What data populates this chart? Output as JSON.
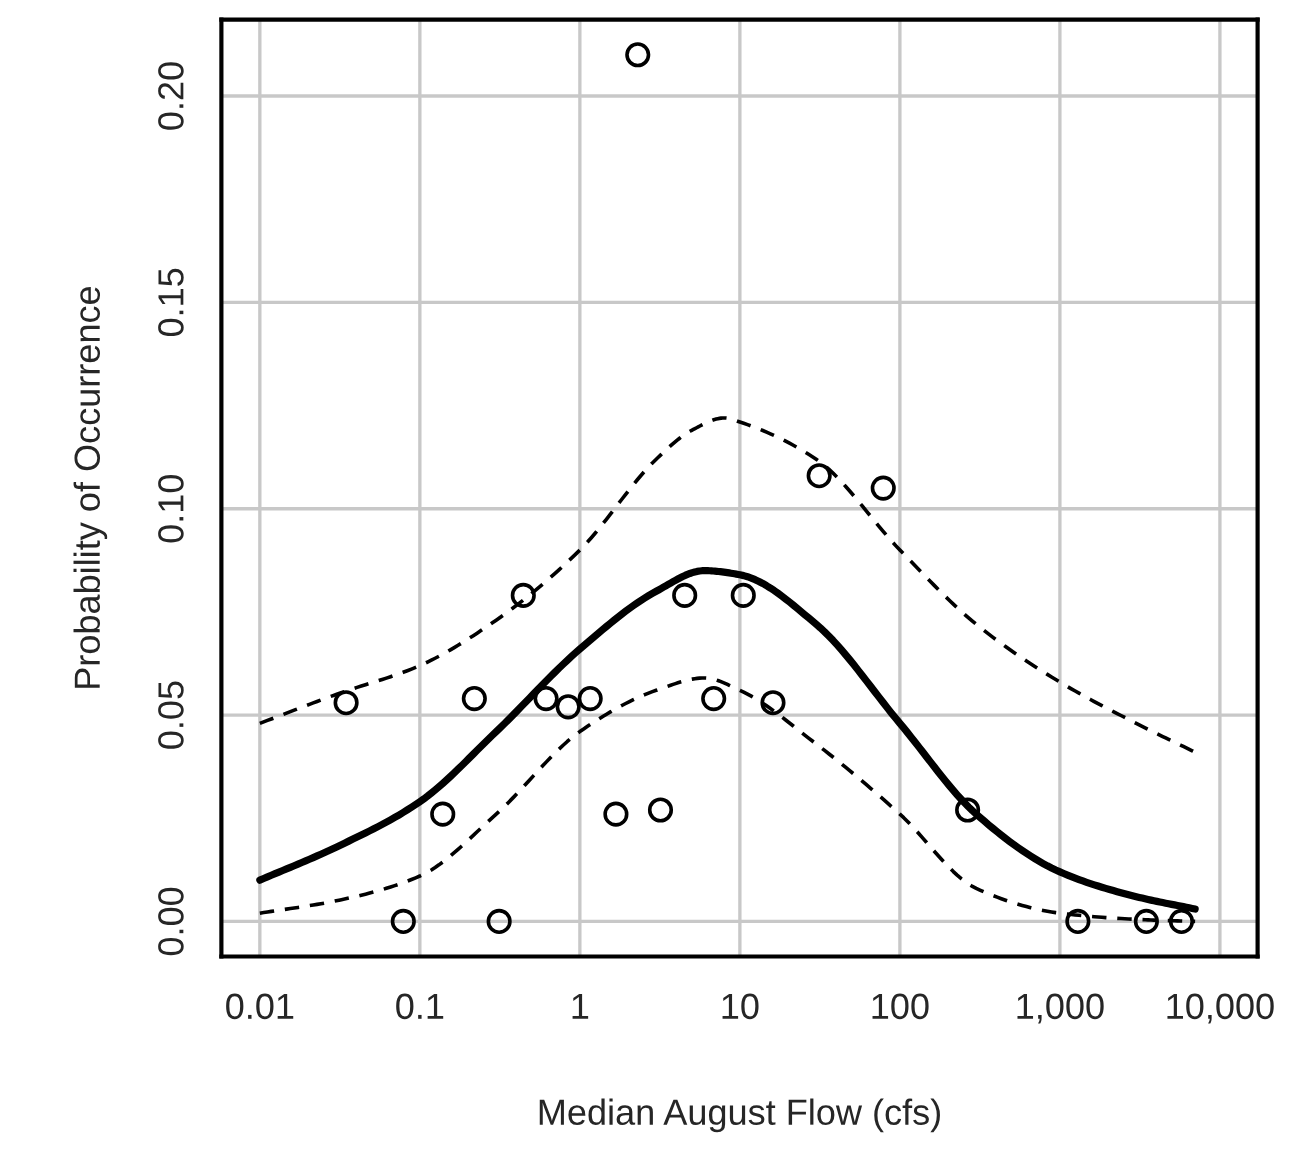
{
  "chart_data": {
    "type": "scatter",
    "xlabel": "Median August Flow (cfs)",
    "ylabel": "Probability of Occurrence",
    "log": "x",
    "xlim": [
      0.00575,
      17200
    ],
    "xticks": [
      {
        "value": 0.01,
        "label": "0.01"
      },
      {
        "value": 0.1,
        "label": "0.1"
      },
      {
        "value": 1,
        "label": "1"
      },
      {
        "value": 10,
        "label": "10"
      },
      {
        "value": 100,
        "label": "100"
      },
      {
        "value": 1000,
        "label": "1,000"
      },
      {
        "value": 10000,
        "label": "10,000"
      }
    ],
    "ylim": [
      -0.0085,
      0.2185
    ],
    "yticks": [
      {
        "value": 0,
        "label": "0.00"
      },
      {
        "value": 0.05,
        "label": "0.05"
      },
      {
        "value": 0.1,
        "label": "0.10"
      },
      {
        "value": 0.15,
        "label": "0.15"
      },
      {
        "value": 0.2,
        "label": "0.20"
      }
    ],
    "grid": true,
    "legend": false,
    "series": [
      {
        "marker": "circle",
        "color": "#000000",
        "x": [
          2.3,
          0.0346,
          0.443,
          0.219,
          0.615,
          0.845,
          1.16,
          4.52,
          10.5,
          6.86,
          0.139,
          1.68,
          3.19,
          0.0788,
          0.313,
          31.3,
          78.7,
          16.1,
          265,
          1295,
          3470,
          5750
        ],
        "values": [
          0.21,
          0.053,
          0.079,
          0.054,
          0.054,
          0.052,
          0.054,
          0.079,
          0.079,
          0.054,
          0.026,
          0.026,
          0.027,
          0,
          0,
          0.108,
          0.105,
          0.053,
          0.027,
          0,
          0,
          0
        ]
      },
      {
        "type": "line",
        "line_style": "solid",
        "color": "#000000",
        "x": [
          0.01,
          0.03,
          0.1,
          0.3,
          1,
          3,
          6,
          10,
          30,
          100,
          300,
          1000,
          3000,
          7000
        ],
        "values": [
          0.01,
          0.018,
          0.029,
          0.046,
          0.066,
          0.08,
          0.085,
          0.084,
          0.072,
          0.048,
          0.026,
          0.012,
          0.006,
          0.003
        ]
      },
      {
        "type": "line",
        "line_style": "dashed",
        "color": "#000000",
        "x": [
          0.01,
          0.03,
          0.1,
          0.3,
          1,
          3,
          5,
          8,
          10,
          30,
          100,
          300,
          1000,
          3000,
          7000
        ],
        "values": [
          0.048,
          0.055,
          0.062,
          0.073,
          0.09,
          0.112,
          0.119,
          0.122,
          0.121,
          0.112,
          0.09,
          0.072,
          0.058,
          0.048,
          0.041
        ]
      },
      {
        "type": "line",
        "line_style": "dashed",
        "color": "#000000",
        "x": [
          0.01,
          0.03,
          0.1,
          0.3,
          1,
          3,
          6,
          10,
          30,
          100,
          300,
          1000,
          3000,
          7000
        ],
        "values": [
          0.002,
          0.005,
          0.011,
          0.026,
          0.046,
          0.056,
          0.059,
          0.056,
          0.043,
          0.026,
          0.008,
          0.002,
          0.0005,
          0
        ]
      }
    ]
  }
}
